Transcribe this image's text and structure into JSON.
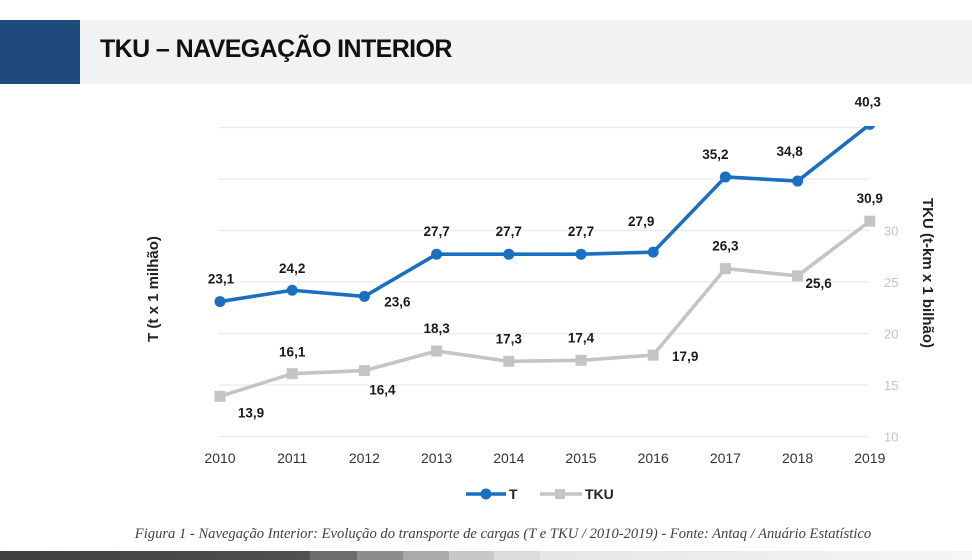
{
  "header": {
    "title": "TKU – NAVEGAÇÃO INTERIOR"
  },
  "caption": "Figura 1 - Navegação Interior: Evolução do transporte de cargas (T e TKU / 2010-2019) - Fonte: Antaq / Anuário Estatístico",
  "colors": {
    "header_accent": "#1f4a7c",
    "header_band": "#f2f2f2",
    "series_T": "#1a6fc0",
    "series_TKU": "#c4c4c4",
    "gridline": "#ebebeb"
  },
  "chart_data": {
    "type": "line",
    "title": "",
    "categories": [
      "2010",
      "2011",
      "2012",
      "2013",
      "2014",
      "2015",
      "2016",
      "2017",
      "2018",
      "2019"
    ],
    "series": [
      {
        "name": "T",
        "axis": "left",
        "marker": "circle",
        "color": "#1a6fc0",
        "values": [
          23.1,
          24.2,
          23.6,
          27.7,
          27.7,
          27.7,
          27.9,
          35.2,
          34.8,
          40.3
        ],
        "labels": [
          "23,1",
          "24,2",
          "23,6",
          "27,7",
          "27,7",
          "27,7",
          "27,9",
          "35,2",
          "34,8",
          "40,3"
        ]
      },
      {
        "name": "TKU",
        "axis": "right",
        "marker": "square",
        "color": "#c4c4c4",
        "values": [
          13.9,
          16.1,
          16.4,
          18.3,
          17.3,
          17.4,
          17.9,
          26.3,
          25.6,
          30.9
        ],
        "labels": [
          "13,9",
          "16,1",
          "16,4",
          "18,3",
          "17,3",
          "17,4",
          "17,9",
          "26,3",
          "25,6",
          "30,9"
        ]
      }
    ],
    "xlabel": "",
    "ylabel_left": "T (t x 1 milhão)",
    "ylabel_right": "TKU (t-km x 1 bilhão)",
    "ylim": [
      10,
      40
    ],
    "gridlines": [
      10,
      15,
      20,
      25,
      30,
      35,
      40
    ],
    "right_ticks": [
      "10",
      "15",
      "20",
      "25",
      "30"
    ],
    "right_tick_values": [
      10,
      15,
      20,
      25,
      30
    ],
    "grid": true,
    "legend": {
      "position": "bottom",
      "entries": [
        "T",
        "TKU"
      ]
    }
  }
}
